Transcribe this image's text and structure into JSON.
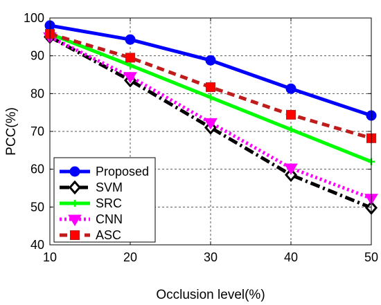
{
  "chart_data": {
    "type": "line",
    "xlabel": "Occlusion level(%)",
    "ylabel": "PCC(%)",
    "xlim": [
      10,
      50
    ],
    "ylim": [
      40,
      100
    ],
    "xticks": [
      10,
      20,
      30,
      40,
      50
    ],
    "yticks": [
      40,
      50,
      60,
      70,
      80,
      90,
      100
    ],
    "grid": true,
    "legend_position": "bottom-left",
    "x": [
      10,
      20,
      30,
      40,
      50
    ],
    "series": [
      {
        "name": "Proposed",
        "values": [
          98.0,
          94.3,
          88.8,
          81.3,
          74.2
        ],
        "color": "#0000ff",
        "marker": "circle",
        "dash": "solid"
      },
      {
        "name": "SVM",
        "values": [
          95.0,
          83.5,
          71.0,
          58.5,
          49.8
        ],
        "color": "#000000",
        "marker": "diamond",
        "dash": "dashdot"
      },
      {
        "name": "SRC",
        "values": [
          95.8,
          87.5,
          79.0,
          70.5,
          62.0
        ],
        "color": "#00ff00",
        "marker": "plus",
        "dash": "solid"
      },
      {
        "name": "CNN",
        "values": [
          95.0,
          84.5,
          72.3,
          60.3,
          52.3
        ],
        "color": "#ff00ff",
        "marker": "triangle-down",
        "dash": "dotted"
      },
      {
        "name": "ASC",
        "values": [
          95.8,
          89.5,
          81.7,
          74.4,
          68.2
        ],
        "color": "#ff0000",
        "line_color": "#bf1c1c",
        "marker": "square",
        "dash": "dashed"
      }
    ]
  }
}
